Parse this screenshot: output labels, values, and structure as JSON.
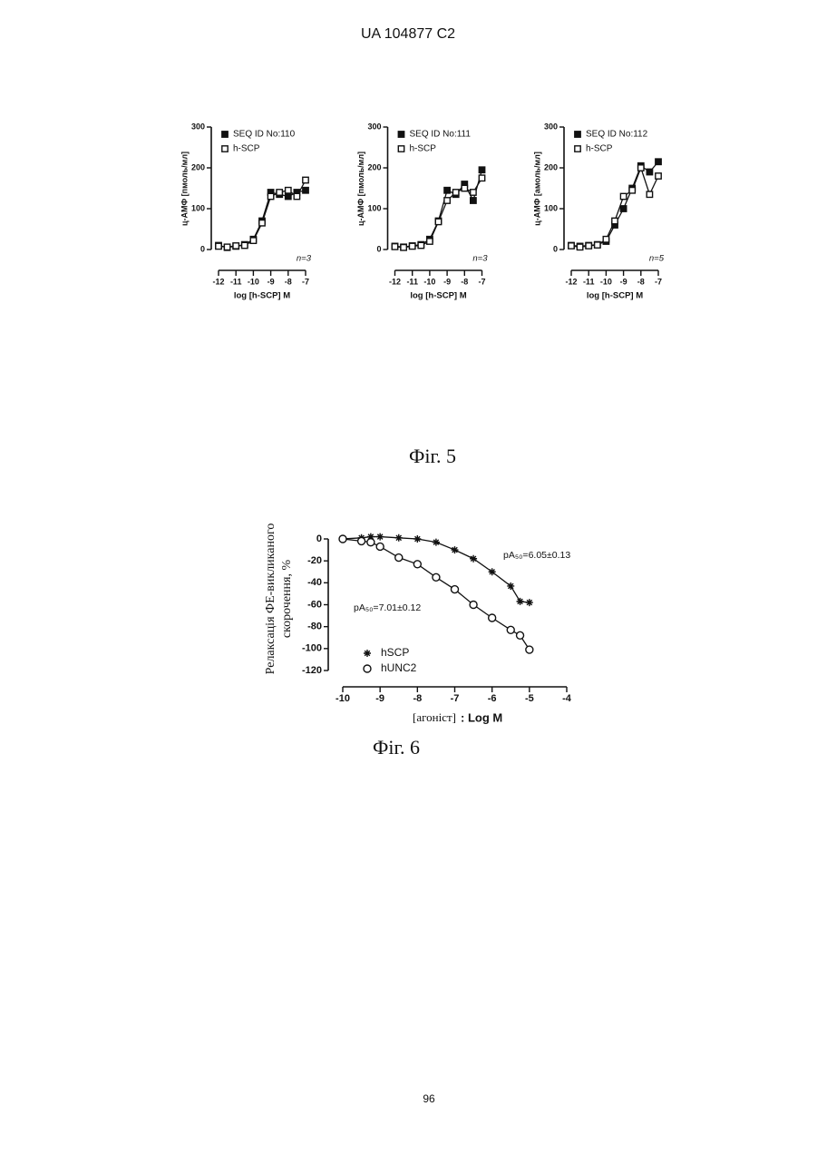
{
  "header": "UA 104877 C2",
  "captions": [
    "Фіг. 5",
    "Фіг. 6"
  ],
  "page_number": "96",
  "chart_data": [
    {
      "type": "line",
      "y_label": [
        "ц-АМФ [пмоль/мл]"
      ],
      "x_label": [
        "log [h-SCP] M"
      ],
      "annotations": [
        "n=3"
      ],
      "xlim": [
        -12,
        -7
      ],
      "xticks": [
        -12,
        -11,
        -10,
        -9,
        -8,
        -7
      ],
      "ylim": [
        0,
        300
      ],
      "yticks": [
        0,
        100,
        200,
        300
      ],
      "x": [
        -12,
        -11.5,
        -11,
        -10.5,
        -10,
        -9.5,
        -9,
        -8.5,
        -8,
        -7.5,
        -7
      ],
      "series": [
        {
          "name": "SEQ ID No:110",
          "marker": "filled-square",
          "color": "#111111",
          "values": [
            10,
            5,
            8,
            12,
            25,
            70,
            140,
            135,
            130,
            140,
            145
          ]
        },
        {
          "name": "h-SCP",
          "marker": "open-square",
          "color": "#111111",
          "values": [
            8,
            6,
            9,
            10,
            22,
            65,
            130,
            140,
            145,
            130,
            170
          ]
        }
      ]
    },
    {
      "type": "line",
      "y_label": [
        "ц-АМФ [пмоль/мл]"
      ],
      "x_label": [
        "log [h-SCP] M"
      ],
      "annotations": [
        "n=3"
      ],
      "xlim": [
        -12,
        -7
      ],
      "xticks": [
        -12,
        -11,
        -10,
        -9,
        -8,
        -7
      ],
      "ylim": [
        0,
        300
      ],
      "yticks": [
        0,
        100,
        200,
        300
      ],
      "x": [
        -12,
        -11.5,
        -11,
        -10.5,
        -10,
        -9.5,
        -9,
        -8.5,
        -8,
        -7.5,
        -7
      ],
      "series": [
        {
          "name": "SEQ ID No:111",
          "marker": "filled-square",
          "color": "#111111",
          "values": [
            8,
            6,
            9,
            12,
            25,
            70,
            145,
            135,
            160,
            120,
            195
          ]
        },
        {
          "name": "h-SCP",
          "marker": "open-square",
          "color": "#111111",
          "values": [
            7,
            5,
            8,
            10,
            20,
            68,
            120,
            140,
            150,
            140,
            175
          ]
        }
      ]
    },
    {
      "type": "line",
      "y_label": [
        "ц-АМФ [амоль/мл]"
      ],
      "x_label": [
        "log [h-SCP] M"
      ],
      "annotations": [
        "n=5"
      ],
      "xlim": [
        -12,
        -7
      ],
      "xticks": [
        -12,
        -11,
        -10,
        -9,
        -8,
        -7
      ],
      "ylim": [
        0,
        300
      ],
      "yticks": [
        0,
        100,
        200,
        300
      ],
      "x": [
        -12,
        -11.5,
        -11,
        -10.5,
        -10,
        -9.5,
        -9,
        -8.5,
        -8,
        -7.5,
        -7
      ],
      "series": [
        {
          "name": "SEQ ID No:112",
          "marker": "filled-square",
          "color": "#111111",
          "values": [
            10,
            8,
            10,
            12,
            20,
            60,
            100,
            150,
            205,
            190,
            215
          ]
        },
        {
          "name": "h-SCP",
          "marker": "open-square",
          "color": "#111111",
          "values": [
            9,
            6,
            9,
            11,
            25,
            70,
            130,
            145,
            200,
            135,
            180
          ]
        }
      ]
    },
    {
      "type": "line",
      "y_label": [
        "Релаксація ФЕ-викликаного",
        "скорочення, %"
      ],
      "x_label": [
        "[агоніст]",
        ": Log M"
      ],
      "annotations": [
        "pA₅₀=6.05±0.13",
        "pA₅₀=7.01±0.12"
      ],
      "xlim": [
        -10,
        -4
      ],
      "xticks": [
        -10,
        -9,
        -8,
        -7,
        -6,
        -5,
        -4
      ],
      "ylim": [
        -120,
        0
      ],
      "yticks": [
        0,
        -20,
        -40,
        -60,
        -80,
        -100,
        -120
      ],
      "x": [
        -10,
        -9.5,
        -9.25,
        -9,
        -8.5,
        -8,
        -7.5,
        -7,
        -6.5,
        -6,
        -5.5,
        -5.25,
        -5
      ],
      "series": [
        {
          "name": "hSCP",
          "marker": "asterisk",
          "color": "#111111",
          "values": [
            0,
            1,
            2,
            2,
            1,
            0,
            -3,
            -10,
            -18,
            -30,
            -43,
            -57,
            -58
          ]
        },
        {
          "name": "hUNC2",
          "marker": "open-circle",
          "color": "#111111",
          "values": [
            0,
            -2,
            -3,
            -7,
            -17,
            -23,
            -35,
            -46,
            -60,
            -72,
            -83,
            -88,
            -101
          ]
        }
      ]
    }
  ]
}
